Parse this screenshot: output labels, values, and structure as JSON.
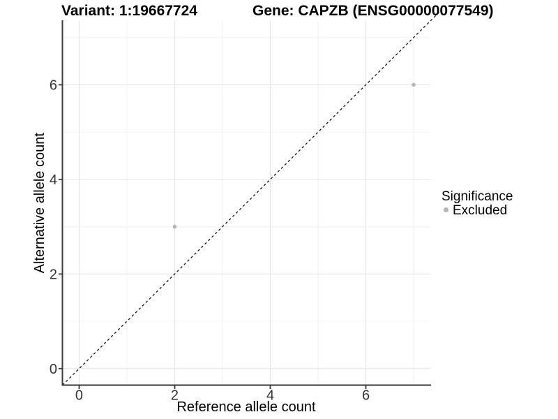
{
  "header": {
    "title_left": "Variant: 1:19667724",
    "title_right": "Gene: CAPZB (ENSG00000077549)"
  },
  "chart_data": {
    "type": "scatter",
    "title_left": "Variant: 1:19667724",
    "title_right": "Gene: CAPZB (ENSG00000077549)",
    "xlabel": "Reference allele count",
    "ylabel": "Alternative allele count",
    "xlim": [
      -0.35,
      7.35
    ],
    "ylim": [
      -0.35,
      7.35
    ],
    "x_ticks": [
      0,
      2,
      4,
      6
    ],
    "y_ticks": [
      0,
      2,
      4,
      6
    ],
    "x_minor": [
      1,
      3,
      5,
      7
    ],
    "y_minor": [
      1,
      3,
      5,
      7
    ],
    "grid": "major and minor, light gray on white",
    "reference_line": {
      "equation": "y = x",
      "style": "dashed",
      "color": "#000000"
    },
    "series": [
      {
        "name": "Excluded",
        "color": "#b5b5b5",
        "marker": "circle",
        "points": [
          {
            "x": 2,
            "y": 3
          },
          {
            "x": 7,
            "y": 6
          }
        ]
      }
    ],
    "legend": {
      "title": "Significance",
      "position": "right",
      "items": [
        {
          "label": "Excluded",
          "color": "#b5b5b5",
          "marker": "circle"
        }
      ]
    }
  },
  "colors": {
    "background": "#ffffff",
    "grid_major": "#e4e4e4",
    "grid_minor": "#f0f0f0",
    "axis": "#3a3a3a",
    "point": "#b5b5b5",
    "reference_line": "#000000"
  }
}
